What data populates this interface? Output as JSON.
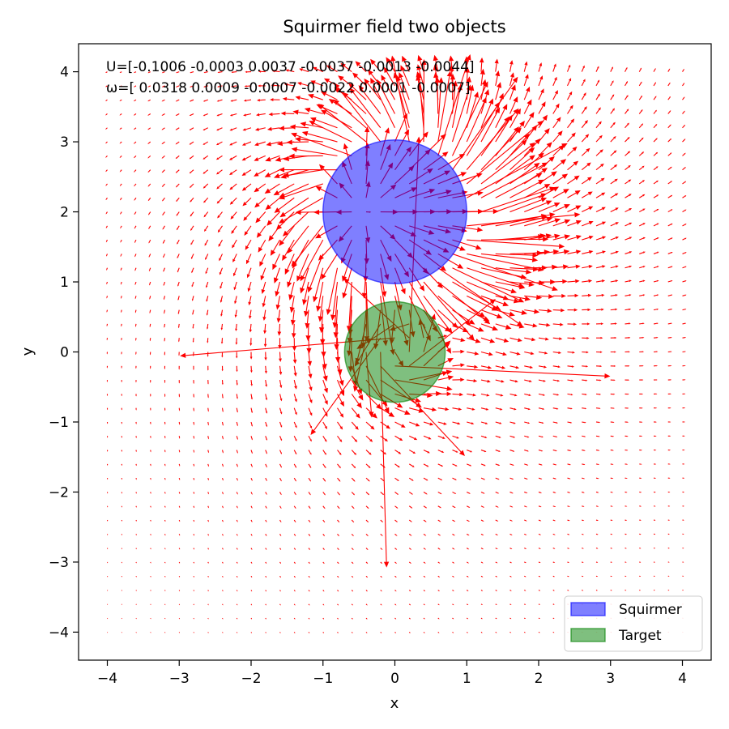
{
  "chart_data": {
    "type": "quiver",
    "title": "Squirmer field two objects",
    "xlabel": "x",
    "ylabel": "y",
    "xlim": [
      -4.4,
      4.4
    ],
    "ylim": [
      -4.4,
      4.4
    ],
    "xticks": [
      -4,
      -3,
      -2,
      -1,
      0,
      1,
      2,
      3,
      4
    ],
    "yticks": [
      -4,
      -3,
      -2,
      -1,
      0,
      1,
      2,
      3,
      4
    ],
    "xtick_labels": [
      "−4",
      "−3",
      "−2",
      "−1",
      "0",
      "1",
      "2",
      "3",
      "4"
    ],
    "ytick_labels": [
      "−4",
      "−3",
      "−2",
      "−1",
      "0",
      "1",
      "2",
      "3",
      "4"
    ],
    "grid": false,
    "annotations": [
      "U=[-0.1006 -0.0003  0.0037 -0.0037 -0.0013 -0.0044]",
      "ω=[ 0.0318  0.0009 -0.0007 -0.0022  0.0001 -0.0007]"
    ],
    "field": {
      "color": "#ff0000",
      "grid_start": -4.0,
      "grid_stop": 4.0,
      "grid_spacing": 0.2
    },
    "objects": [
      {
        "name": "Squirmer",
        "center": [
          0.0,
          2.0
        ],
        "radius": 1.0,
        "face_color": "#0000ff",
        "alpha": 0.5
      },
      {
        "name": "Target",
        "center": [
          0.0,
          0.0
        ],
        "radius": 0.7,
        "face_color": "#008000",
        "alpha": 0.5
      }
    ],
    "legend": {
      "position": "lower-right",
      "entries": [
        "Squirmer",
        "Target"
      ]
    }
  }
}
